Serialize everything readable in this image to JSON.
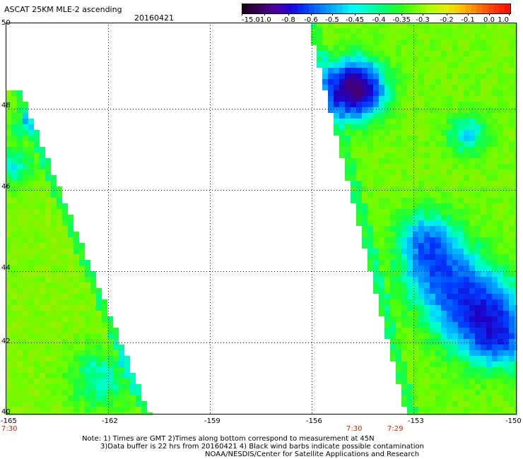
{
  "title": "ASCAT 25KM MLE-2 ascending",
  "date": "20160421",
  "colorbar": {
    "labels": [
      "-15.0",
      "-1.0",
      "-0.8",
      "-0.6",
      "-0.5",
      "-0.45",
      "-0.4",
      "-0.35",
      "-0.3",
      "-0.2",
      "-0.1",
      "0.0",
      "1.0"
    ],
    "colors": [
      "#2a0030",
      "#5a00a0",
      "#1a00d0",
      "#0040ff",
      "#0090ff",
      "#00e0ff",
      "#00ffb0",
      "#00ff40",
      "#60ff00",
      "#c0ff00",
      "#ffe000",
      "#ff8000",
      "#ff2000"
    ]
  },
  "map": {
    "lat_labels": [
      "50",
      "48",
      "46",
      "44",
      "42",
      "40"
    ],
    "lon_labels": [
      "-165",
      "-162",
      "-159",
      "-156",
      "-153",
      "-150"
    ],
    "lon_range": [
      -165,
      -150
    ],
    "lat_range": [
      40,
      50
    ]
  },
  "times": [
    "7:30",
    "7:30",
    "7:29"
  ],
  "notes": [
    "Note: 1) Times are GMT 2)Times along bottom correspond to measurement at 45N",
    "3)Data buffer is 22 hrs from 20160421 4) Black wind barbs indicate possible contamination",
    "NOAA/NESDIS/Center for Satellite Applications and Research"
  ]
}
